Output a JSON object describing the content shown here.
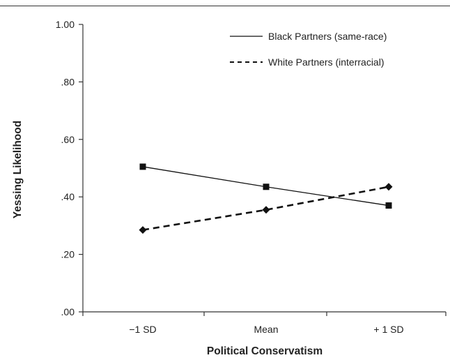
{
  "chart_data": {
    "type": "line",
    "title": "",
    "xlabel": "Political Conservatism",
    "ylabel": "Yessing Likelihood",
    "categories": [
      "−1 SD",
      "Mean",
      "+ 1 SD"
    ],
    "ylim": [
      0,
      1.0
    ],
    "yticks": [
      {
        "value": 0.0,
        "label": ".00"
      },
      {
        "value": 0.2,
        "label": ".20"
      },
      {
        "value": 0.4,
        "label": ".40"
      },
      {
        "value": 0.6,
        "label": ".60"
      },
      {
        "value": 0.8,
        "label": ".80"
      },
      {
        "value": 1.0,
        "label": "1.00"
      }
    ],
    "grid": false,
    "legend_position": "top-right",
    "series": [
      {
        "name": "Black Partners (same-race)",
        "values": [
          0.505,
          0.435,
          0.37
        ],
        "line_style": "solid",
        "marker": "square",
        "color": "#111111"
      },
      {
        "name": "White Partners (interracial)",
        "values": [
          0.285,
          0.355,
          0.435
        ],
        "line_style": "dashed",
        "marker": "diamond",
        "color": "#111111"
      }
    ]
  }
}
